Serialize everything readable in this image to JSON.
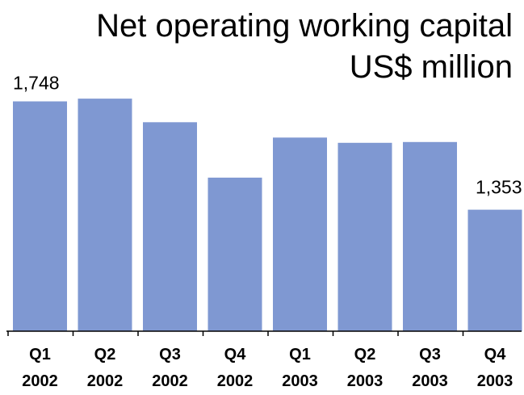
{
  "chart_data": {
    "type": "bar",
    "title_lines": [
      "Net operating working capital",
      "US$ million"
    ],
    "categories": [
      [
        "Q1",
        "2002"
      ],
      [
        "Q2",
        "2002"
      ],
      [
        "Q3",
        "2002"
      ],
      [
        "Q4",
        "2002"
      ],
      [
        "Q1",
        "2003"
      ],
      [
        "Q2",
        "2003"
      ],
      [
        "Q3",
        "2003"
      ],
      [
        "Q4",
        "2003"
      ]
    ],
    "values": [
      1748,
      1758,
      1672,
      1470,
      1616,
      1597,
      1600,
      1353
    ],
    "data_labels": [
      {
        "index": 0,
        "text": "1,748"
      },
      {
        "index": 7,
        "text": "1,353"
      }
    ],
    "bar_color": "#7f98d2",
    "axis_color": "#000000",
    "ylim": [
      910,
      1779
    ],
    "grid": false,
    "legend": "none"
  }
}
